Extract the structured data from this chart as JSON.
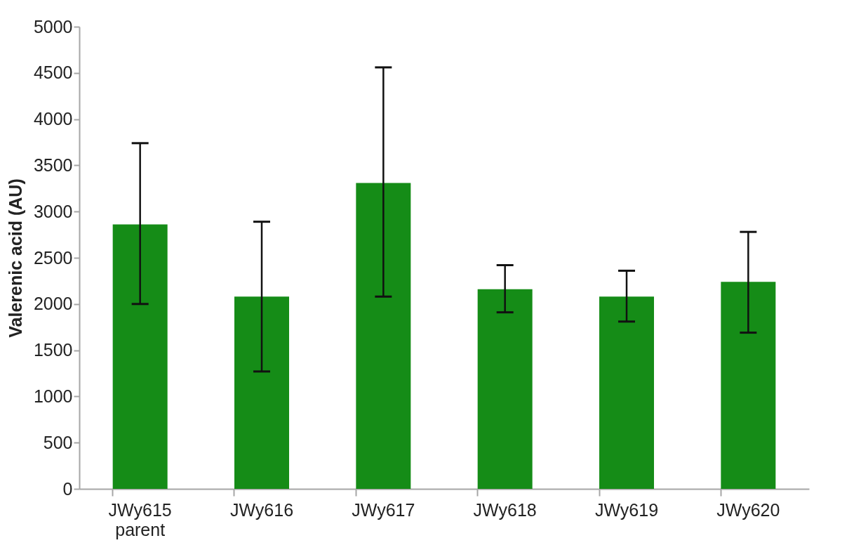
{
  "chart_data": {
    "type": "bar",
    "ylabel": "Valerenic acid (AU)",
    "categories": [
      "JWy615\nparent",
      "JWy616",
      "JWy617",
      "JWy618",
      "JWy619",
      "JWy620"
    ],
    "values": [
      2860,
      2080,
      3310,
      2160,
      2080,
      2240
    ],
    "errors": [
      [
        2000,
        3740
      ],
      [
        1270,
        2890
      ],
      [
        2080,
        4560
      ],
      [
        1910,
        2420
      ],
      [
        1810,
        2360
      ],
      [
        1690,
        2780
      ]
    ],
    "color": "#158c17",
    "ylim": [
      0,
      5000
    ],
    "yticks": [
      0,
      500,
      1000,
      1500,
      2000,
      2500,
      3000,
      3500,
      4000,
      4500,
      5000
    ],
    "grid": false,
    "legend": false
  }
}
